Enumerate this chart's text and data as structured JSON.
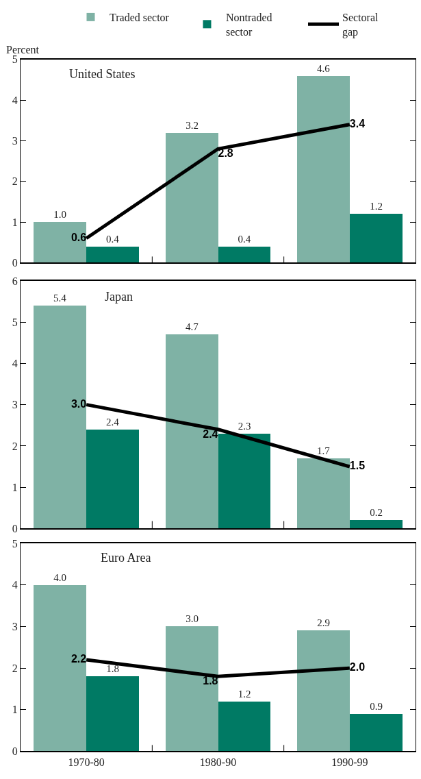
{
  "chart_data": [
    {
      "type": "bar",
      "title": "United States",
      "ylabel": "Percent",
      "categories": [
        "1970-80",
        "1980-90",
        "1990-99"
      ],
      "ylim": [
        0,
        5
      ],
      "yticks": [
        0,
        1,
        2,
        3,
        4,
        5
      ],
      "legend": "top",
      "tick_labels": "y",
      "series": [
        {
          "name": "Traded sector",
          "color": "#7fb2a5",
          "values": [
            1.0,
            3.2,
            4.6
          ],
          "value_labels": [
            "1.0",
            "3.2",
            "4.6"
          ]
        },
        {
          "name": "Nontraded sector",
          "color": "#007a64",
          "values": [
            0.4,
            0.4,
            1.2
          ],
          "value_labels": [
            "0.4",
            "0.4",
            "1.2"
          ]
        },
        {
          "name": "Sectoral gap",
          "color": "#000000",
          "type": "line",
          "values": [
            0.6,
            2.8,
            3.4
          ],
          "value_labels": [
            "0.6",
            "2.8",
            "3.4"
          ]
        }
      ]
    },
    {
      "type": "bar",
      "title": "Japan",
      "categories": [
        "1970-80",
        "1980-90",
        "1990-99"
      ],
      "ylim": [
        0,
        6
      ],
      "yticks": [
        0,
        1,
        2,
        3,
        4,
        5,
        6
      ],
      "tick_labels": "y",
      "series": [
        {
          "color": "#7fb2a5",
          "values": [
            5.4,
            4.7,
            1.7
          ],
          "value_labels": [
            "5.4",
            "4.7",
            "1.7"
          ]
        },
        {
          "color": "#007a64",
          "values": [
            2.4,
            2.3,
            0.2
          ],
          "value_labels": [
            "2.4",
            "2.3",
            "0.2"
          ]
        },
        {
          "color": "#000000",
          "type": "line",
          "values": [
            3.0,
            2.4,
            1.5
          ],
          "value_labels": [
            "3.0",
            "2.4",
            "1.5"
          ]
        }
      ]
    },
    {
      "type": "bar",
      "title": "Euro Area",
      "categories": [
        "1970-80",
        "1980-90",
        "1990-99"
      ],
      "ylim": [
        0,
        5
      ],
      "yticks": [
        0,
        1,
        2,
        3,
        4,
        5
      ],
      "series": [
        {
          "color": "#7fb2a5",
          "values": [
            4.0,
            3.0,
            2.9
          ],
          "value_labels": [
            "4.0",
            "3.0",
            "2.9"
          ]
        },
        {
          "color": "#007a64",
          "values": [
            1.8,
            1.2,
            0.9
          ],
          "value_labels": [
            "1.8",
            "1.2",
            "0.9"
          ]
        },
        {
          "color": "#000000",
          "type": "line",
          "values": [
            2.2,
            1.8,
            2.0
          ],
          "value_labels": [
            "2.2",
            "1.8",
            "2.0"
          ]
        }
      ]
    }
  ]
}
